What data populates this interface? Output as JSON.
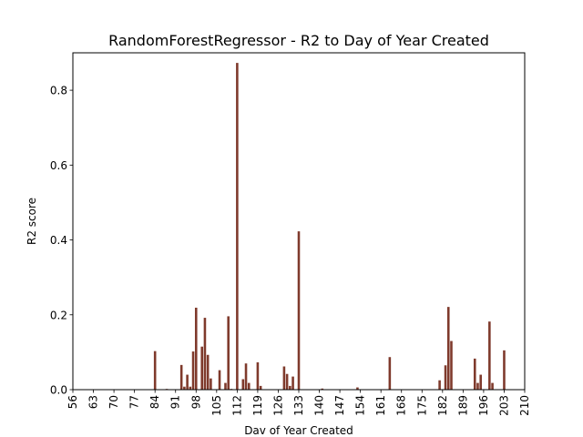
{
  "chart_data": {
    "type": "bar",
    "title": "RandomForestRegressor - R2 to Day of Year Created",
    "xlabel": "Dav of Year Created",
    "ylabel": "R2 score",
    "xlim": [
      56,
      210
    ],
    "ylim": [
      0,
      0.9
    ],
    "x_ticks": [
      56,
      63,
      70,
      77,
      84,
      91,
      98,
      105,
      112,
      119,
      126,
      133,
      140,
      147,
      154,
      161,
      168,
      175,
      182,
      189,
      196,
      203,
      210
    ],
    "y_ticks": [
      0.0,
      0.2,
      0.4,
      0.6,
      0.8
    ],
    "y_tick_labels": [
      "0.0",
      "0.2",
      "0.4",
      "0.6",
      "0.8"
    ],
    "bar_color": "#7f3a2c",
    "grid": false,
    "x": [
      84,
      88,
      93,
      94,
      95,
      96,
      97,
      98,
      100,
      101,
      102,
      103,
      106,
      108,
      109,
      110,
      112,
      114,
      115,
      116,
      119,
      120,
      128,
      129,
      130,
      131,
      133,
      141,
      153,
      164,
      181,
      183,
      184,
      185,
      193,
      194,
      195,
      198,
      199,
      203
    ],
    "values": [
      0.103,
      0.002,
      0.066,
      0.008,
      0.04,
      0.008,
      0.102,
      0.219,
      0.115,
      0.192,
      0.093,
      0.03,
      0.052,
      0.018,
      0.196,
      0.002,
      0.873,
      0.028,
      0.07,
      0.018,
      0.073,
      0.01,
      0.062,
      0.042,
      0.01,
      0.035,
      0.423,
      0.003,
      0.006,
      0.087,
      0.025,
      0.065,
      0.221,
      0.13,
      0.083,
      0.018,
      0.04,
      0.182,
      0.018,
      0.105
    ]
  }
}
